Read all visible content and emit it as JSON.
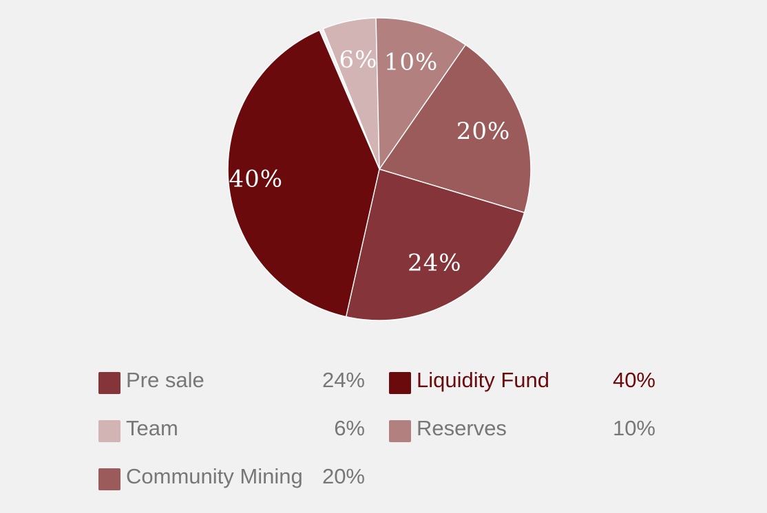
{
  "chart_data": {
    "type": "pie",
    "slices": [
      {
        "name": "Pre sale",
        "value": 24,
        "label": "24%",
        "color": "#853539"
      },
      {
        "name": "Liquidity Fund",
        "value": 40,
        "label": "40%",
        "color": "#6b0a0c"
      },
      {
        "name": "Team",
        "value": 6,
        "label": "6%",
        "color": "#d2b4b5"
      },
      {
        "name": "Reserves",
        "value": 10,
        "label": "10%",
        "color": "#b2817f"
      },
      {
        "name": "Community Mining",
        "value": 20,
        "label": "20%",
        "color": "#9b5b5b"
      }
    ],
    "legend_placement": "bottom",
    "highlighted": "Liquidity Fund"
  },
  "legend": [
    {
      "name": "Pre sale",
      "value": "24%",
      "color": "#853539"
    },
    {
      "name": "Liquidity Fund",
      "value": "40%",
      "color": "#6b0a0c"
    },
    {
      "name": "Team",
      "value": "6%",
      "color": "#d2b4b5"
    },
    {
      "name": "Reserves",
      "value": "10%",
      "color": "#b2817f"
    },
    {
      "name": "Community Mining",
      "value": "20%",
      "color": "#9b5b5b"
    }
  ]
}
